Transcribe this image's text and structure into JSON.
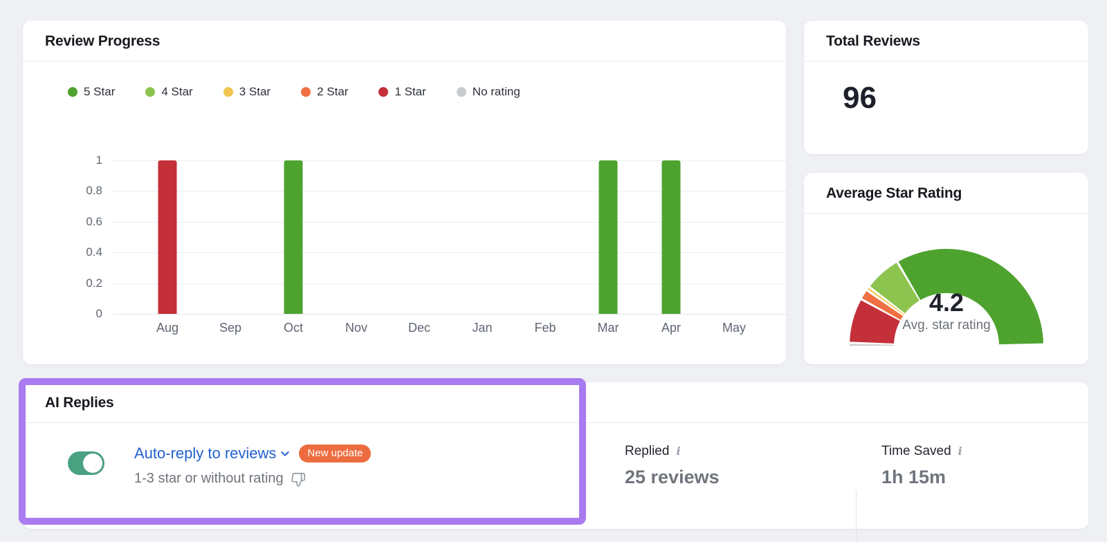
{
  "page": {
    "background": "#eef0f4"
  },
  "review_progress": {
    "title": "Review Progress",
    "legend": [
      {
        "label": "5 Star",
        "color": "#4ea32f"
      },
      {
        "label": "4 Star",
        "color": "#8cc44f"
      },
      {
        "label": "3 Star",
        "color": "#f2c54e"
      },
      {
        "label": "2 Star",
        "color": "#ef7042"
      },
      {
        "label": "1 Star",
        "color": "#c43039"
      },
      {
        "label": "No rating",
        "color": "#c7cacf"
      }
    ]
  },
  "chart_data": [
    {
      "type": "bar",
      "title": "Review Progress",
      "categories": [
        "Aug",
        "Sep",
        "Oct",
        "Nov",
        "Dec",
        "Jan",
        "Feb",
        "Mar",
        "Apr",
        "May"
      ],
      "series": [
        {
          "name": "1 Star",
          "color": "#c43039",
          "values": [
            1,
            0,
            0,
            0,
            0,
            0,
            0,
            0,
            0,
            0
          ]
        },
        {
          "name": "5 Star",
          "color": "#4ea32f",
          "values": [
            0,
            0,
            1,
            0,
            0,
            0,
            0,
            1,
            1,
            0
          ]
        }
      ],
      "ylim": [
        0,
        1
      ],
      "yticks": [
        0,
        0.2,
        0.4,
        0.6,
        0.8,
        1
      ],
      "grid": true,
      "legend_position": "top",
      "legend_entries": [
        "5 Star",
        "4 Star",
        "3 Star",
        "2 Star",
        "1 Star",
        "No rating"
      ]
    },
    {
      "type": "gauge",
      "title": "Average Star Rating",
      "center_value": "4.2",
      "center_label": "Avg. star rating",
      "range_degrees": 180,
      "segments": [
        {
          "name": "No rating",
          "color": "#c7cacf",
          "fraction": 0.013
        },
        {
          "name": "1 Star",
          "color": "#c43039",
          "fraction": 0.15
        },
        {
          "name": "2 Star",
          "color": "#ef7042",
          "fraction": 0.035
        },
        {
          "name": "3 Star",
          "color": "#f2c54e",
          "fraction": 0.013
        },
        {
          "name": "4 Star",
          "color": "#8cc44f",
          "fraction": 0.124
        },
        {
          "name": "5 Star",
          "color": "#4ea32f",
          "fraction": 0.665
        }
      ]
    }
  ],
  "total_reviews": {
    "title": "Total Reviews",
    "value": "96"
  },
  "average_star_rating": {
    "title": "Average Star Rating",
    "value": "4.2",
    "label": "Avg. star rating"
  },
  "ai_replies": {
    "title": "AI Replies",
    "toggle_state": "on",
    "toggle_color": "#4aa181",
    "link_label": "Auto-reply to reviews",
    "badge_label": "New update",
    "badge_color": "#ed6c3f",
    "subtitle": "1-3 star or without rating",
    "replied": {
      "label": "Replied",
      "value": "25 reviews"
    },
    "time_saved": {
      "label": "Time Saved",
      "value": "1h 15m"
    }
  },
  "annotation": {
    "color": "#a87bf0"
  }
}
